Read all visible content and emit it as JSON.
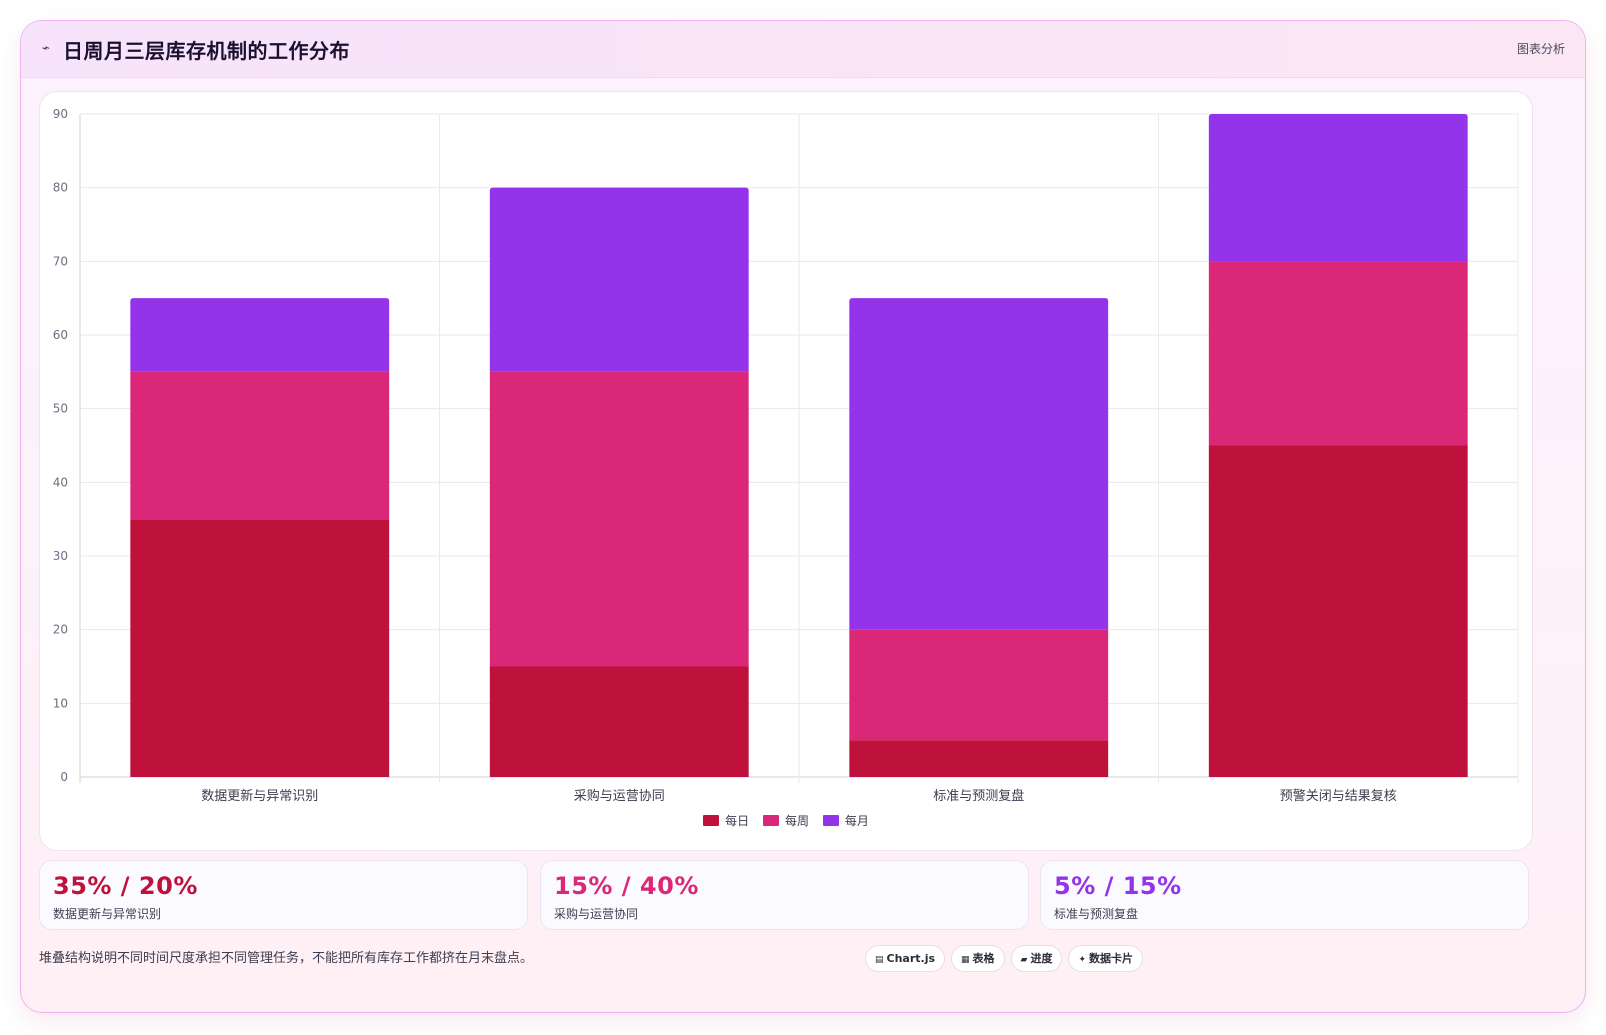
{
  "header": {
    "title": "日周月三层库存机制的工作分布",
    "title_icon": "trend-line-icon",
    "action_label": "图表分析"
  },
  "chart_data": {
    "type": "bar",
    "stacked": true,
    "categories": [
      "数据更新与异常识别",
      "采购与运营协同",
      "标准与预测复盘",
      "预警关闭与结果复核"
    ],
    "series": [
      {
        "name": "每日",
        "color": "#be123c",
        "values": [
          35,
          15,
          5,
          45
        ]
      },
      {
        "name": "每周",
        "color": "#db2777",
        "values": [
          20,
          40,
          15,
          25
        ]
      },
      {
        "name": "每月",
        "color": "#9333ea",
        "values": [
          10,
          25,
          45,
          20
        ]
      }
    ],
    "ylim": [
      0,
      90
    ],
    "yticks": [
      0,
      10,
      20,
      30,
      40,
      50,
      60,
      70,
      80,
      90
    ],
    "grid": true,
    "legend_position": "bottom"
  },
  "stats": [
    {
      "value": "35% / 20%",
      "label": "数据更新与异常识别",
      "color": "#be123c"
    },
    {
      "value": "15% / 40%",
      "label": "采购与运营协同",
      "color": "#db2777"
    },
    {
      "value": "5% / 15%",
      "label": "标准与预测复盘",
      "color": "#9333ea"
    }
  ],
  "footnote": "堆叠结构说明不同时间尺度承担不同管理任务，不能把所有库存工作都挤在月末盘点。",
  "tags": [
    {
      "icon": "chart-icon",
      "glyph": "▤",
      "label": "Chart.js"
    },
    {
      "icon": "table-icon",
      "glyph": "▦",
      "label": "表格"
    },
    {
      "icon": "progress-icon",
      "glyph": "▰",
      "label": "进度"
    },
    {
      "icon": "card-icon",
      "glyph": "✦",
      "label": "数据卡片"
    }
  ]
}
